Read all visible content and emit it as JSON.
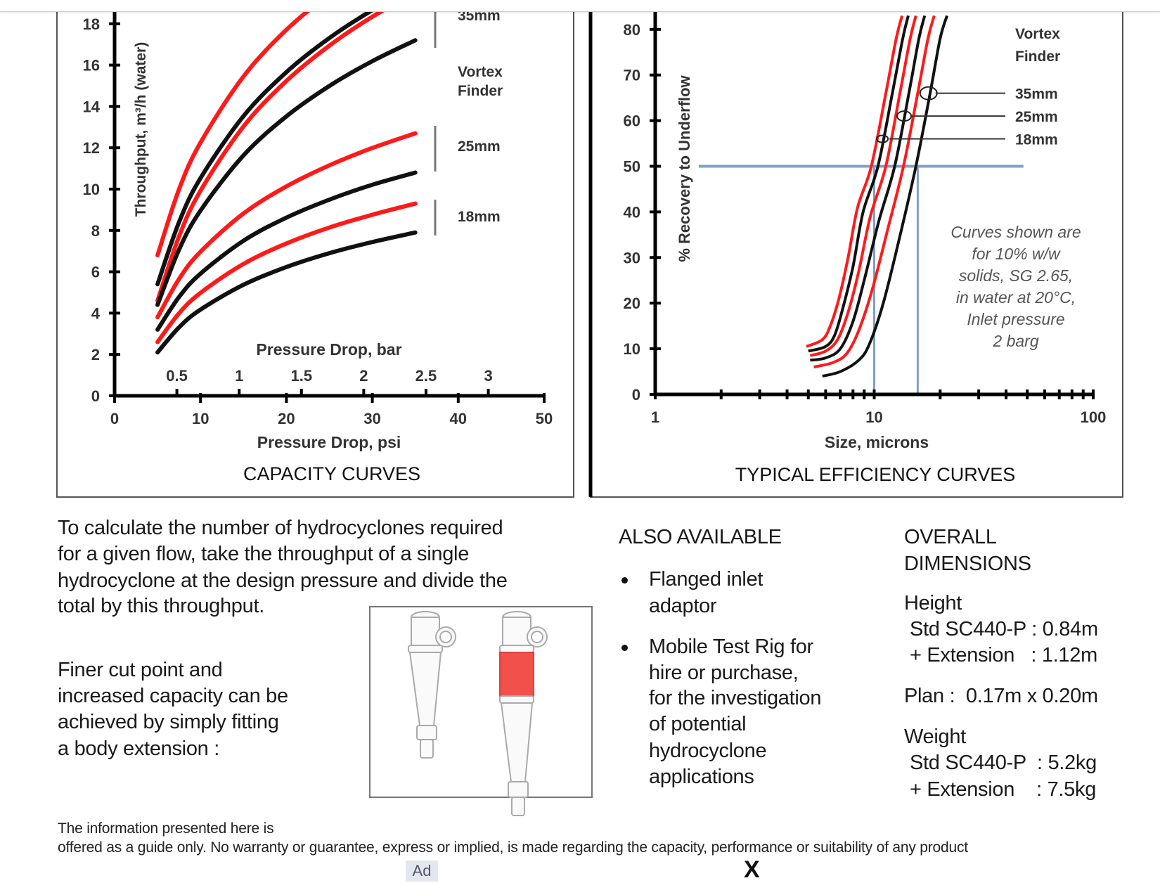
{
  "chart_data": [
    {
      "type": "line",
      "title": "CAPACITY CURVES",
      "xlabel": "Pressure Drop, psi",
      "x2label": "Pressure Drop, bar",
      "ylabel": "Throughput, m³/h (water)",
      "xlim": [
        0,
        50
      ],
      "ylim": [
        0,
        18
      ],
      "xticks": [
        0,
        10,
        20,
        30,
        40,
        50
      ],
      "x2ticks": [
        "0.5",
        "1",
        "1.5",
        "2",
        "2.5",
        "3"
      ],
      "yticks": [
        0,
        2,
        4,
        6,
        8,
        10,
        12,
        14,
        16,
        18
      ],
      "annotations": {
        "35mm": "35mm",
        "vortex": "Vortex",
        "finder": "Finder",
        "25mm": "25mm",
        "18mm": "18mm"
      },
      "x": [
        5,
        7.5,
        10,
        15,
        20,
        25,
        30,
        35
      ],
      "series": [
        {
          "name": "35mm extension",
          "color": "#ff1a1a",
          "values": [
            6.8,
            9.99,
            12.25,
            15.45,
            17.71,
            19.46,
            null,
            null
          ]
        },
        {
          "name": "35mm standard",
          "color": "#111111",
          "values": [
            5.4,
            8.4,
            10.53,
            13.53,
            15.66,
            17.31,
            18.66,
            19.8
          ]
        },
        {
          "name": "35mm extension b",
          "color": "#ff1a1a",
          "values": [
            4.6,
            7.71,
            9.92,
            13.03,
            15.23,
            16.94,
            18.34,
            19.5
          ]
        },
        {
          "name": "25mm extension black",
          "color": "#111111",
          "values": [
            4.4,
            7.07,
            8.96,
            11.63,
            13.52,
            14.99,
            16.19,
            17.2
          ]
        },
        {
          "name": "25mm extension",
          "color": "#ff1a1a",
          "values": [
            3.8,
            5.65,
            6.97,
            8.82,
            10.13,
            11.15,
            11.99,
            12.7
          ]
        },
        {
          "name": "25mm standard",
          "color": "#111111",
          "values": [
            3.2,
            4.78,
            5.91,
            7.5,
            8.62,
            9.49,
            10.21,
            10.8
          ]
        },
        {
          "name": "18mm extension",
          "color": "#ff1a1a",
          "values": [
            2.6,
            3.99,
            4.98,
            6.38,
            7.37,
            8.14,
            8.76,
            9.3
          ]
        },
        {
          "name": "18mm standard",
          "color": "#111111",
          "values": [
            2.1,
            3.31,
            4.17,
            5.37,
            6.23,
            6.9,
            7.44,
            7.9
          ]
        }
      ]
    },
    {
      "type": "line",
      "title": "TYPICAL EFFICIENCY CURVES",
      "xlabel": "Size, microns",
      "ylabel": "% Recovery to Underflow",
      "xscale": "log",
      "xlim": [
        1,
        100
      ],
      "ylim": [
        0,
        80
      ],
      "xticks": [
        "1",
        "10",
        "100"
      ],
      "yticks": [
        0,
        10,
        20,
        30,
        40,
        50,
        60,
        70,
        80
      ],
      "legend_title": [
        "Vortex",
        "Finder"
      ],
      "legend": [
        {
          "label": "35mm",
          "y": 66,
          "x": 17.7
        },
        {
          "label": "25mm",
          "y": 61,
          "x": 13.7
        },
        {
          "label": "18mm",
          "y": 56,
          "x": 10.9
        }
      ],
      "note": [
        "Curves shown are",
        "for 10% w/w",
        "solids, SG 2.65,",
        "in water at 20°C,",
        "Inlet pressure",
        "2 barg"
      ],
      "reference_lines": {
        "y50": 50,
        "d50_low": 10,
        "d50_high": 15.8,
        "x_from": 1.58,
        "x_to": 48
      },
      "series": [
        {
          "name": "red 1",
          "color": "#ff1a1a",
          "points": [
            [
              4.9,
              10.5
            ],
            [
              5.8,
              12
            ],
            [
              6.3,
              15
            ],
            [
              6.9,
              21
            ],
            [
              7.6,
              30
            ],
            [
              8.4,
              41
            ],
            [
              9.7,
              50
            ],
            [
              11.3,
              66
            ],
            [
              12.6,
              78
            ],
            [
              13.4,
              83
            ]
          ]
        },
        {
          "name": "black 1",
          "color": "#111111",
          "points": [
            [
              5,
              9.5
            ],
            [
              6,
              10.5
            ],
            [
              6.6,
              13
            ],
            [
              7.2,
              19
            ],
            [
              8,
              28
            ],
            [
              8.9,
              40
            ],
            [
              10.4,
              50
            ],
            [
              12.1,
              66
            ],
            [
              13.5,
              78
            ],
            [
              14.3,
              83
            ]
          ]
        },
        {
          "name": "red 2",
          "color": "#ff1a1a",
          "points": [
            [
              5.1,
              8.5
            ],
            [
              6,
              9.5
            ],
            [
              6.8,
              12
            ],
            [
              7.6,
              18
            ],
            [
              8.5,
              27
            ],
            [
              9.6,
              39
            ],
            [
              11.3,
              50
            ],
            [
              13.1,
              66
            ],
            [
              14.6,
              78
            ],
            [
              15.5,
              83
            ]
          ]
        },
        {
          "name": "black 2",
          "color": "#111111",
          "points": [
            [
              5.1,
              7.5
            ],
            [
              6,
              8
            ],
            [
              7,
              10
            ],
            [
              8,
              16
            ],
            [
              9,
              25
            ],
            [
              10.5,
              38
            ],
            [
              12.4,
              50
            ],
            [
              14.4,
              66
            ],
            [
              16,
              78
            ],
            [
              17,
              83
            ]
          ]
        },
        {
          "name": "red 3",
          "color": "#ff1a1a",
          "points": [
            [
              5.3,
              6
            ],
            [
              6.5,
              7
            ],
            [
              7.5,
              9
            ],
            [
              8.5,
              14
            ],
            [
              9.8,
              23
            ],
            [
              11.5,
              36
            ],
            [
              13.6,
              50
            ],
            [
              15.8,
              66
            ],
            [
              17.6,
              78
            ],
            [
              18.8,
              83
            ]
          ]
        },
        {
          "name": "black 3",
          "color": "#111111",
          "points": [
            [
              5.8,
              4
            ],
            [
              7,
              5
            ],
            [
              8.5,
              7.5
            ],
            [
              9.5,
              11
            ],
            [
              11,
              20
            ],
            [
              13,
              34
            ],
            [
              15.5,
              50
            ],
            [
              18,
              66
            ],
            [
              20,
              78
            ],
            [
              21.5,
              83
            ]
          ]
        }
      ]
    }
  ],
  "intro": [
    "To calculate the number of hydrocyclones required",
    "for a given flow, take the throughput of a single",
    "hydrocyclone at the design pressure and divide the",
    "total by this throughput."
  ],
  "extension": [
    "Finer cut point and",
    "increased capacity can be",
    "achieved by simply fitting",
    "a body extension :"
  ],
  "also_available": {
    "heading": "ALSO AVAILABLE",
    "items": [
      [
        "Flanged inlet",
        "adaptor"
      ],
      [
        "Mobile Test Rig for",
        "hire or purchase,",
        "for the investigation",
        "of potential",
        "hydrocyclone",
        "applications"
      ]
    ]
  },
  "dimensions": {
    "heading": [
      "OVERALL",
      "DIMENSIONS"
    ],
    "height_label": "Height",
    "height_std": "Std SC440-P : 0.84m",
    "height_ext": "+ Extension   : 1.12m",
    "plan": "Plan :  0.17m x 0.20m",
    "weight_label": "Weight",
    "weight_std": "Std SC440-P  : 5.2kg",
    "weight_ext": "+ Extension    : 7.5kg"
  },
  "disclaimer": [
    "The information presented here is",
    "offered as a guide only. No warranty or guarantee, express or implied, is made regarding the capacity, performance or suitability of any product"
  ],
  "ad": {
    "badge": "Ad",
    "close": "X"
  },
  "colors": {
    "red": "#ff1a1a",
    "blue_ref": "#7f9fc6",
    "extension_body": "#f2504b"
  }
}
